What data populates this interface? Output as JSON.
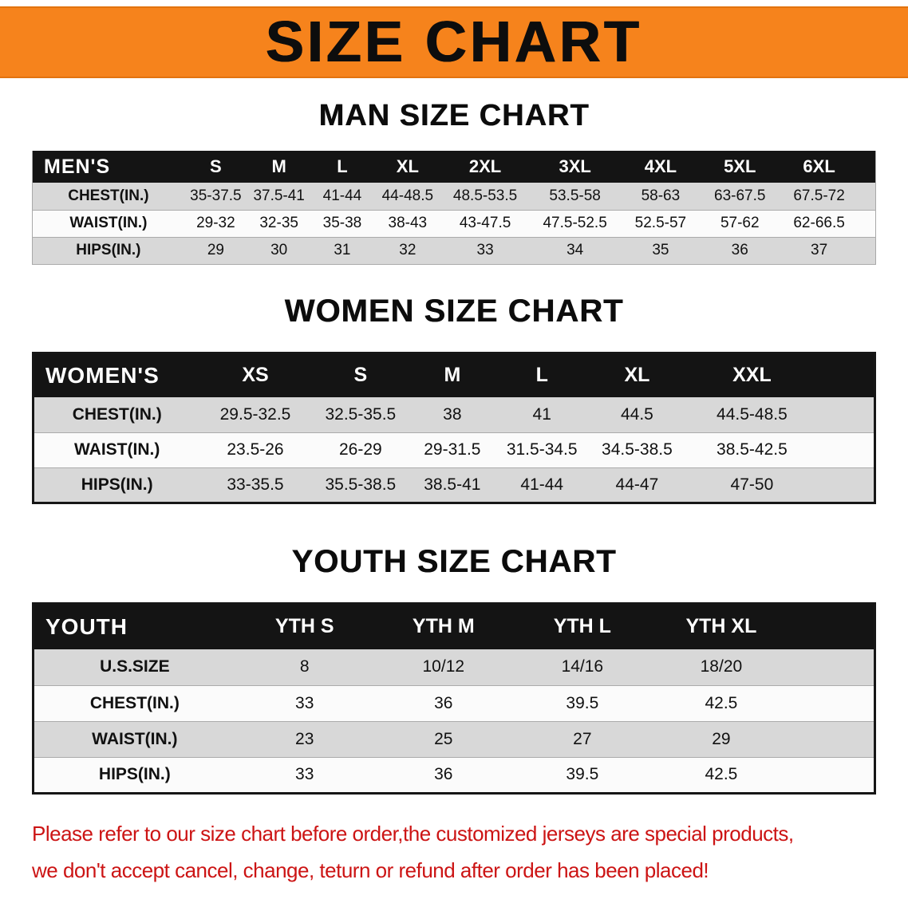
{
  "banner": {
    "title": "SIZE CHART"
  },
  "colors": {
    "banner_bg": "#F6831C",
    "table_header_bg": "#141414",
    "row_shade": "#D8D8D8",
    "row_light": "#FBFBFB",
    "disclaimer_red": "#CC1414"
  },
  "sections": [
    {
      "heading": "MAN SIZE CHART",
      "table": {
        "corner": "MEN'S",
        "columns": [
          "S",
          "M",
          "L",
          "XL",
          "2XL",
          "3XL",
          "4XL",
          "5XL",
          "6XL"
        ],
        "rows": [
          {
            "label": "CHEST(IN.)",
            "values": [
              "35-37.5",
              "37.5-41",
              "41-44",
              "44-48.5",
              "48.5-53.5",
              "53.5-58",
              "58-63",
              "63-67.5",
              "67.5-72"
            ]
          },
          {
            "label": "WAIST(IN.)",
            "values": [
              "29-32",
              "32-35",
              "35-38",
              "38-43",
              "43-47.5",
              "47.5-52.5",
              "52.5-57",
              "57-62",
              "62-66.5"
            ]
          },
          {
            "label": "HIPS(IN.)",
            "values": [
              "29",
              "30",
              "31",
              "32",
              "33",
              "34",
              "35",
              "36",
              "37"
            ]
          }
        ]
      }
    },
    {
      "heading": "WOMEN SIZE CHART",
      "table": {
        "corner": "WOMEN'S",
        "columns": [
          "XS",
          "S",
          "M",
          "L",
          "XL",
          "XXL"
        ],
        "rows": [
          {
            "label": "CHEST(IN.)",
            "values": [
              "29.5-32.5",
              "32.5-35.5",
              "38",
              "41",
              "44.5",
              "44.5-48.5"
            ]
          },
          {
            "label": "WAIST(IN.)",
            "values": [
              "23.5-26",
              "26-29",
              "29-31.5",
              "31.5-34.5",
              "34.5-38.5",
              "38.5-42.5"
            ]
          },
          {
            "label": "HIPS(IN.)",
            "values": [
              "33-35.5",
              "35.5-38.5",
              "38.5-41",
              "41-44",
              "44-47",
              "47-50"
            ]
          }
        ]
      }
    },
    {
      "heading": "YOUTH SIZE CHART",
      "table": {
        "corner": "YOUTH",
        "columns": [
          "YTH S",
          "YTH M",
          "YTH L",
          "YTH XL"
        ],
        "rows": [
          {
            "label": "U.S.SIZE",
            "values": [
              "8",
              "10/12",
              "14/16",
              "18/20"
            ]
          },
          {
            "label": "CHEST(IN.)",
            "values": [
              "33",
              "36",
              "39.5",
              "42.5"
            ]
          },
          {
            "label": "WAIST(IN.)",
            "values": [
              "23",
              "25",
              "27",
              "29"
            ]
          },
          {
            "label": "HIPS(IN.)",
            "values": [
              "33",
              "36",
              "39.5",
              "42.5"
            ]
          }
        ]
      }
    }
  ],
  "disclaimer": {
    "line1": "Please refer to our size chart before order,the customized jerseys are special products,",
    "line2": "we don't accept cancel, change, teturn or refund after order has been placed!"
  }
}
